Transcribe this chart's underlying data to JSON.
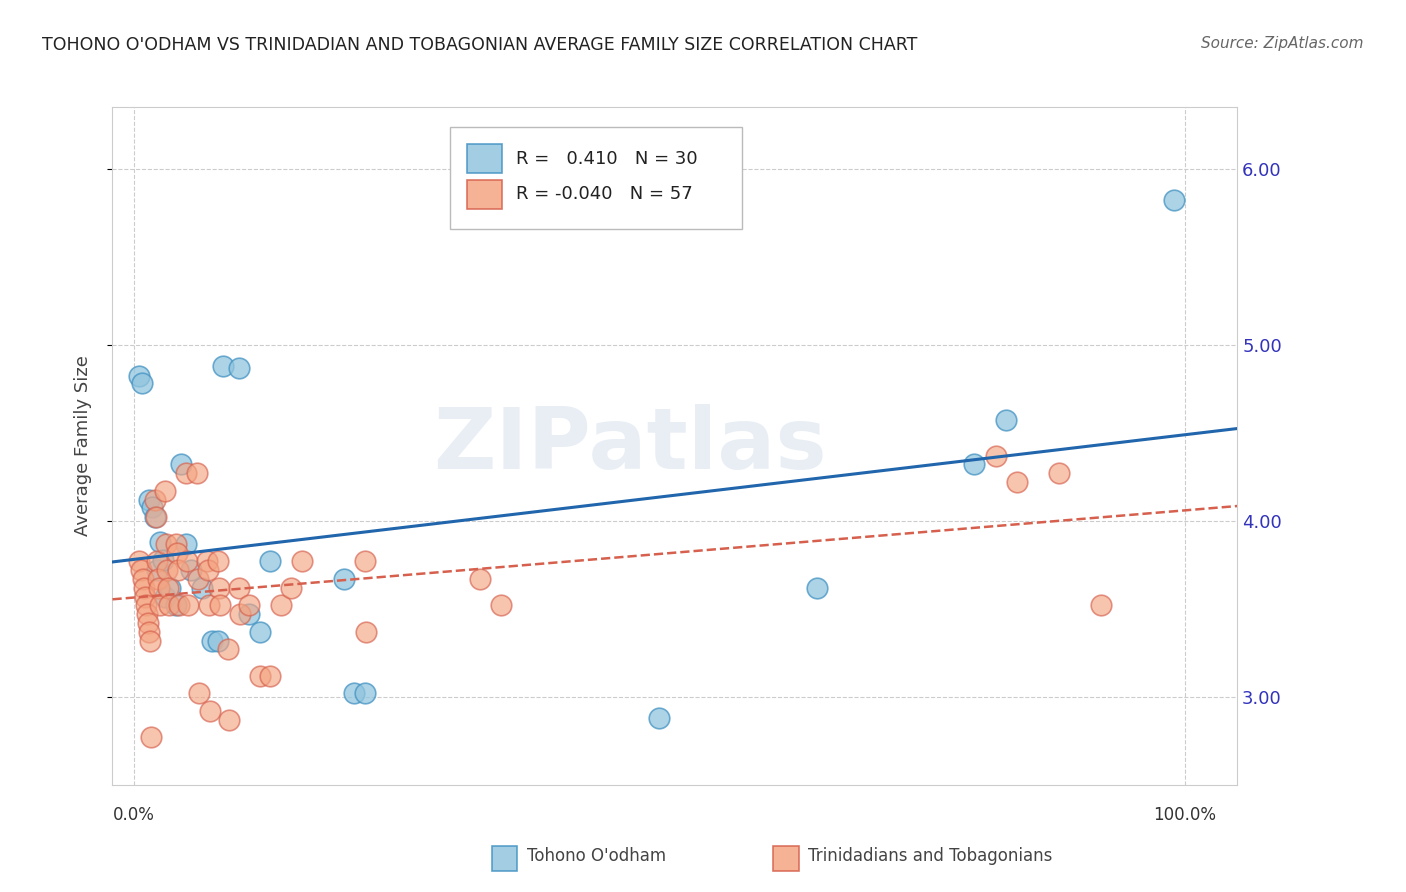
{
  "title": "TOHONO O'ODHAM VS TRINIDADIAN AND TOBAGONIAN AVERAGE FAMILY SIZE CORRELATION CHART",
  "source": "Source: ZipAtlas.com",
  "ylabel": "Average Family Size",
  "legend_label1": "Tohono O'odham",
  "legend_label2": "Trinidadians and Tobagonians",
  "R1": "0.410",
  "N1": "30",
  "R2": "-0.040",
  "N2": "57",
  "watermark": "ZIPatlas",
  "ylim_min": 2.5,
  "ylim_max": 6.35,
  "xlim_min": -0.02,
  "xlim_max": 1.05,
  "yticks": [
    3.0,
    4.0,
    5.0,
    6.0
  ],
  "blue_color": "#92c5de",
  "blue_edge_color": "#4393c3",
  "blue_line_color": "#2166ac",
  "pink_color": "#f4a582",
  "pink_edge_color": "#d6604d",
  "pink_line_color": "#d6604d",
  "background_color": "#ffffff",
  "grid_color": "#cccccc",
  "title_color": "#222222",
  "axis_tick_color": "#3333bb",
  "blue_x": [
    0.005,
    0.008,
    0.015,
    0.018,
    0.02,
    0.022,
    0.025,
    0.028,
    0.03,
    0.035,
    0.04,
    0.045,
    0.05,
    0.055,
    0.065,
    0.075,
    0.08,
    0.085,
    0.1,
    0.11,
    0.12,
    0.13,
    0.2,
    0.21,
    0.22,
    0.5,
    0.65,
    0.8,
    0.83,
    0.99
  ],
  "blue_y": [
    4.82,
    4.78,
    4.12,
    4.08,
    4.02,
    3.72,
    3.88,
    3.78,
    3.57,
    3.62,
    3.52,
    4.32,
    3.87,
    3.72,
    3.62,
    3.32,
    3.32,
    4.88,
    4.87,
    3.47,
    3.37,
    3.77,
    3.67,
    3.02,
    3.02,
    2.88,
    3.62,
    4.32,
    4.57,
    5.82
  ],
  "pink_x": [
    0.005,
    0.007,
    0.009,
    0.01,
    0.011,
    0.012,
    0.013,
    0.014,
    0.015,
    0.016,
    0.017,
    0.02,
    0.021,
    0.022,
    0.023,
    0.024,
    0.025,
    0.03,
    0.031,
    0.032,
    0.033,
    0.034,
    0.04,
    0.041,
    0.042,
    0.043,
    0.05,
    0.051,
    0.052,
    0.06,
    0.061,
    0.062,
    0.07,
    0.071,
    0.072,
    0.073,
    0.08,
    0.081,
    0.082,
    0.09,
    0.091,
    0.1,
    0.101,
    0.11,
    0.12,
    0.13,
    0.14,
    0.15,
    0.16,
    0.22,
    0.221,
    0.33,
    0.35,
    0.82,
    0.84,
    0.88,
    0.92
  ],
  "pink_y": [
    3.77,
    3.72,
    3.67,
    3.62,
    3.57,
    3.52,
    3.47,
    3.42,
    3.37,
    3.32,
    2.77,
    4.12,
    4.02,
    3.77,
    3.67,
    3.62,
    3.52,
    4.17,
    3.87,
    3.72,
    3.62,
    3.52,
    3.87,
    3.82,
    3.72,
    3.52,
    4.27,
    3.77,
    3.52,
    4.27,
    3.67,
    3.02,
    3.77,
    3.72,
    3.52,
    2.92,
    3.77,
    3.62,
    3.52,
    3.27,
    2.87,
    3.62,
    3.47,
    3.52,
    3.12,
    3.12,
    3.52,
    3.62,
    3.77,
    3.77,
    3.37,
    3.67,
    3.52,
    4.37,
    4.22,
    4.27,
    3.52
  ]
}
